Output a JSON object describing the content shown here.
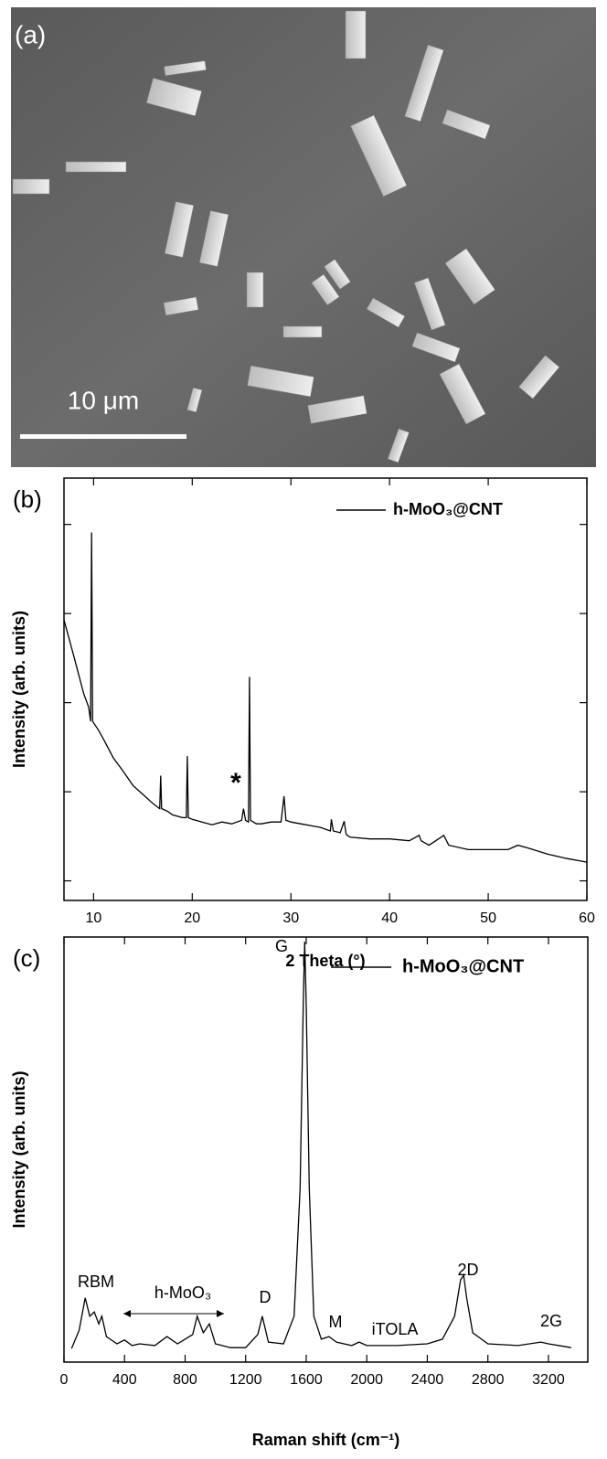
{
  "panel_a": {
    "label": "(a)",
    "scale_bar": "10 μm"
  },
  "chart_data": [
    {
      "type": "line",
      "panel_label": "(b)",
      "xlabel": "2 Theta (°)",
      "ylabel": "Intensity (arb. units)",
      "xlim": [
        7,
        60
      ],
      "xticks": [
        10,
        20,
        30,
        40,
        50,
        60
      ],
      "ylim": [
        0.78,
        5.52
      ],
      "yticks": [
        1,
        2,
        3,
        4,
        5
      ],
      "annotations": [
        "*"
      ],
      "x": [
        7,
        8,
        9,
        9.5,
        9.7,
        9.8,
        9.9,
        10.5,
        11,
        12,
        13,
        14,
        15,
        16,
        16.7,
        16.8,
        16.9,
        17.5,
        18,
        19,
        19.4,
        19.5,
        19.6,
        20,
        21,
        22,
        23,
        24,
        25,
        25.2,
        25.4,
        25.7,
        25.8,
        25.9,
        26.5,
        27,
        28,
        29,
        29.3,
        29.5,
        30,
        31,
        32,
        33,
        34,
        34.1,
        34.3,
        35,
        35.4,
        35.6,
        36,
        38,
        40,
        42,
        43,
        43.2,
        44,
        45.5,
        46,
        48,
        50,
        52,
        53,
        54,
        56,
        58,
        60
      ],
      "series": [
        {
          "name": "h-MoO₃@CNT",
          "color": "#000000",
          "values": [
            3.93,
            3.52,
            3.1,
            2.95,
            2.79,
            4.91,
            2.79,
            2.69,
            2.59,
            2.38,
            2.23,
            2.07,
            1.97,
            1.87,
            1.81,
            2.18,
            1.81,
            1.78,
            1.74,
            1.71,
            1.71,
            2.4,
            1.71,
            1.69,
            1.66,
            1.63,
            1.66,
            1.64,
            1.68,
            1.81,
            1.68,
            1.66,
            3.29,
            1.68,
            1.64,
            1.64,
            1.66,
            1.66,
            1.95,
            1.68,
            1.66,
            1.64,
            1.62,
            1.6,
            1.56,
            1.69,
            1.56,
            1.54,
            1.67,
            1.52,
            1.49,
            1.47,
            1.47,
            1.45,
            1.51,
            1.45,
            1.4,
            1.51,
            1.4,
            1.35,
            1.35,
            1.35,
            1.4,
            1.37,
            1.3,
            1.25,
            1.21
          ]
        }
      ]
    },
    {
      "type": "line",
      "panel_label": "(c)",
      "xlabel": "Raman shift (cm⁻¹)",
      "ylabel": "Intensity (arb. units)",
      "xlim": [
        0,
        3460
      ],
      "xticks": [
        0,
        400,
        800,
        1200,
        1600,
        2000,
        2400,
        2800,
        3200
      ],
      "ylim": [
        0,
        100
      ],
      "annotations": [
        "G",
        "D",
        "M",
        "iTOLA",
        "2D",
        "2G",
        "RBM",
        "h-MoO₃"
      ],
      "x": [
        50,
        100,
        140,
        170,
        200,
        230,
        250,
        280,
        350,
        400,
        450,
        500,
        600,
        680,
        750,
        850,
        880,
        920,
        960,
        1000,
        1100,
        1200,
        1280,
        1310,
        1350,
        1450,
        1520,
        1560,
        1580,
        1590,
        1600,
        1620,
        1650,
        1700,
        1750,
        1800,
        1900,
        1950,
        2000,
        2200,
        2400,
        2500,
        2580,
        2620,
        2640,
        2660,
        2700,
        2800,
        3000,
        3150,
        3200,
        3350
      ],
      "series": [
        {
          "name": "h-MoO₃@CNT",
          "color": "#000000",
          "values": [
            3.2,
            7.5,
            15.1,
            10.8,
            11.8,
            9.0,
            10.8,
            6.0,
            4.3,
            5.2,
            3.9,
            4.3,
            3.9,
            6.0,
            4.3,
            6.5,
            10.8,
            6.9,
            9.0,
            4.3,
            3.4,
            3.4,
            6.5,
            10.8,
            4.7,
            4.3,
            10.8,
            40.9,
            83.9,
            98.9,
            83.9,
            40.9,
            10.8,
            5.4,
            6.0,
            4.7,
            3.9,
            4.7,
            3.9,
            3.9,
            4.3,
            5.4,
            10.8,
            19.4,
            20.4,
            15.1,
            6.9,
            4.3,
            3.9,
            4.7,
            4.3,
            3.4
          ]
        }
      ]
    }
  ]
}
